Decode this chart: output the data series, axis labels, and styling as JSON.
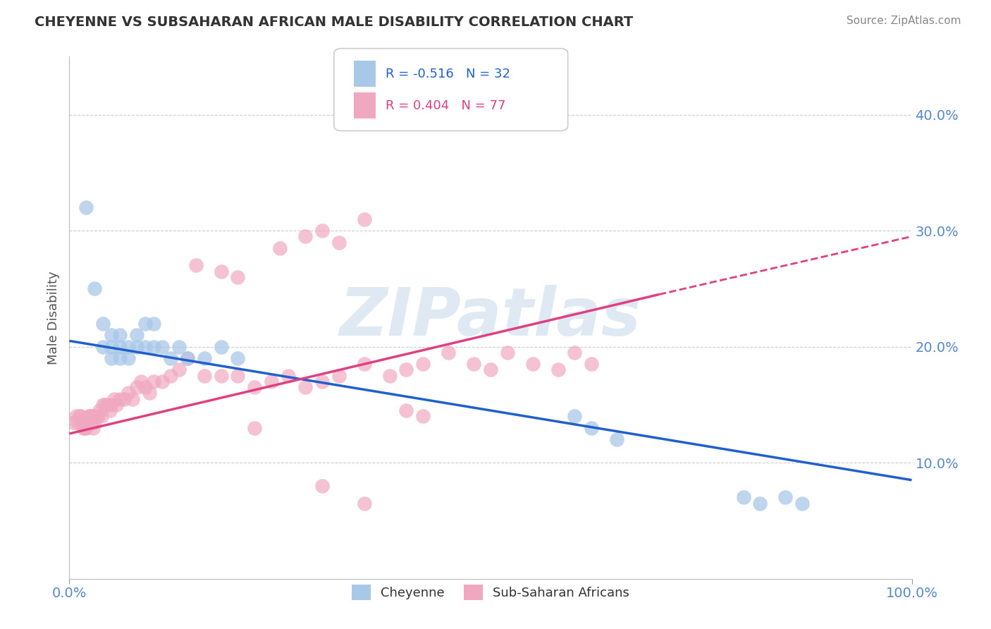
{
  "title": "CHEYENNE VS SUBSAHARAN AFRICAN MALE DISABILITY CORRELATION CHART",
  "source": "Source: ZipAtlas.com",
  "ylabel": "Male Disability",
  "watermark": "ZIPatlas",
  "legend_r1": "R = -0.516",
  "legend_n1": "N = 32",
  "legend_r2": "R = 0.404",
  "legend_n2": "N = 77",
  "legend_label1": "Cheyenne",
  "legend_label2": "Sub-Saharan Africans",
  "cheyenne_color": "#a8c8e8",
  "subsaharan_color": "#f0a8c0",
  "line1_color": "#2060cc",
  "line2_color": "#e04080",
  "background_color": "#ffffff",
  "grid_color": "#cccccc",
  "title_color": "#333333",
  "axis_label_color": "#5588cc",
  "cheyenne_x": [
    0.02,
    0.03,
    0.04,
    0.04,
    0.05,
    0.05,
    0.05,
    0.06,
    0.06,
    0.06,
    0.07,
    0.07,
    0.08,
    0.08,
    0.09,
    0.09,
    0.1,
    0.1,
    0.11,
    0.12,
    0.13,
    0.14,
    0.16,
    0.18,
    0.2,
    0.6,
    0.62,
    0.65,
    0.8,
    0.82,
    0.85,
    0.87
  ],
  "cheyenne_y": [
    0.32,
    0.25,
    0.2,
    0.22,
    0.19,
    0.21,
    0.2,
    0.19,
    0.2,
    0.21,
    0.19,
    0.2,
    0.2,
    0.21,
    0.22,
    0.2,
    0.2,
    0.22,
    0.2,
    0.19,
    0.2,
    0.19,
    0.19,
    0.2,
    0.19,
    0.14,
    0.13,
    0.12,
    0.07,
    0.065,
    0.07,
    0.065
  ],
  "subsaharan_x": [
    0.005,
    0.008,
    0.01,
    0.012,
    0.013,
    0.015,
    0.016,
    0.017,
    0.018,
    0.019,
    0.02,
    0.022,
    0.023,
    0.024,
    0.025,
    0.026,
    0.027,
    0.028,
    0.03,
    0.032,
    0.034,
    0.036,
    0.038,
    0.04,
    0.042,
    0.045,
    0.048,
    0.05,
    0.053,
    0.056,
    0.06,
    0.065,
    0.07,
    0.075,
    0.08,
    0.085,
    0.09,
    0.095,
    0.1,
    0.11,
    0.12,
    0.13,
    0.14,
    0.16,
    0.18,
    0.2,
    0.22,
    0.24,
    0.26,
    0.28,
    0.3,
    0.32,
    0.35,
    0.38,
    0.4,
    0.42,
    0.45,
    0.48,
    0.5,
    0.52,
    0.55,
    0.58,
    0.6,
    0.62,
    0.25,
    0.28,
    0.3,
    0.32,
    0.35,
    0.22,
    0.4,
    0.42,
    0.15,
    0.18,
    0.2,
    0.3,
    0.35
  ],
  "subsaharan_y": [
    0.135,
    0.14,
    0.135,
    0.14,
    0.14,
    0.135,
    0.13,
    0.135,
    0.13,
    0.135,
    0.13,
    0.135,
    0.14,
    0.14,
    0.135,
    0.14,
    0.14,
    0.13,
    0.135,
    0.14,
    0.14,
    0.145,
    0.14,
    0.15,
    0.15,
    0.15,
    0.145,
    0.15,
    0.155,
    0.15,
    0.155,
    0.155,
    0.16,
    0.155,
    0.165,
    0.17,
    0.165,
    0.16,
    0.17,
    0.17,
    0.175,
    0.18,
    0.19,
    0.175,
    0.175,
    0.175,
    0.165,
    0.17,
    0.175,
    0.165,
    0.17,
    0.175,
    0.185,
    0.175,
    0.18,
    0.185,
    0.195,
    0.185,
    0.18,
    0.195,
    0.185,
    0.18,
    0.195,
    0.185,
    0.285,
    0.295,
    0.3,
    0.29,
    0.31,
    0.13,
    0.145,
    0.14,
    0.27,
    0.265,
    0.26,
    0.08,
    0.065
  ],
  "line1_x0": 0.0,
  "line1_y0": 0.205,
  "line1_x1": 1.0,
  "line1_y1": 0.085,
  "line2_x0": 0.0,
  "line2_y0": 0.125,
  "line2_x1": 0.7,
  "line2_y1": 0.245,
  "line2_dash_x0": 0.7,
  "line2_dash_y0": 0.245,
  "line2_dash_x1": 1.0,
  "line2_dash_y1": 0.295,
  "xlim": [
    0.0,
    1.0
  ],
  "ylim": [
    0.0,
    0.45
  ],
  "yticks": [
    0.1,
    0.2,
    0.3,
    0.4
  ],
  "ytick_labels": [
    "10.0%",
    "20.0%",
    "30.0%",
    "40.0%"
  ],
  "xticks": [
    0.0,
    1.0
  ],
  "xtick_labels": [
    "0.0%",
    "100.0%"
  ]
}
